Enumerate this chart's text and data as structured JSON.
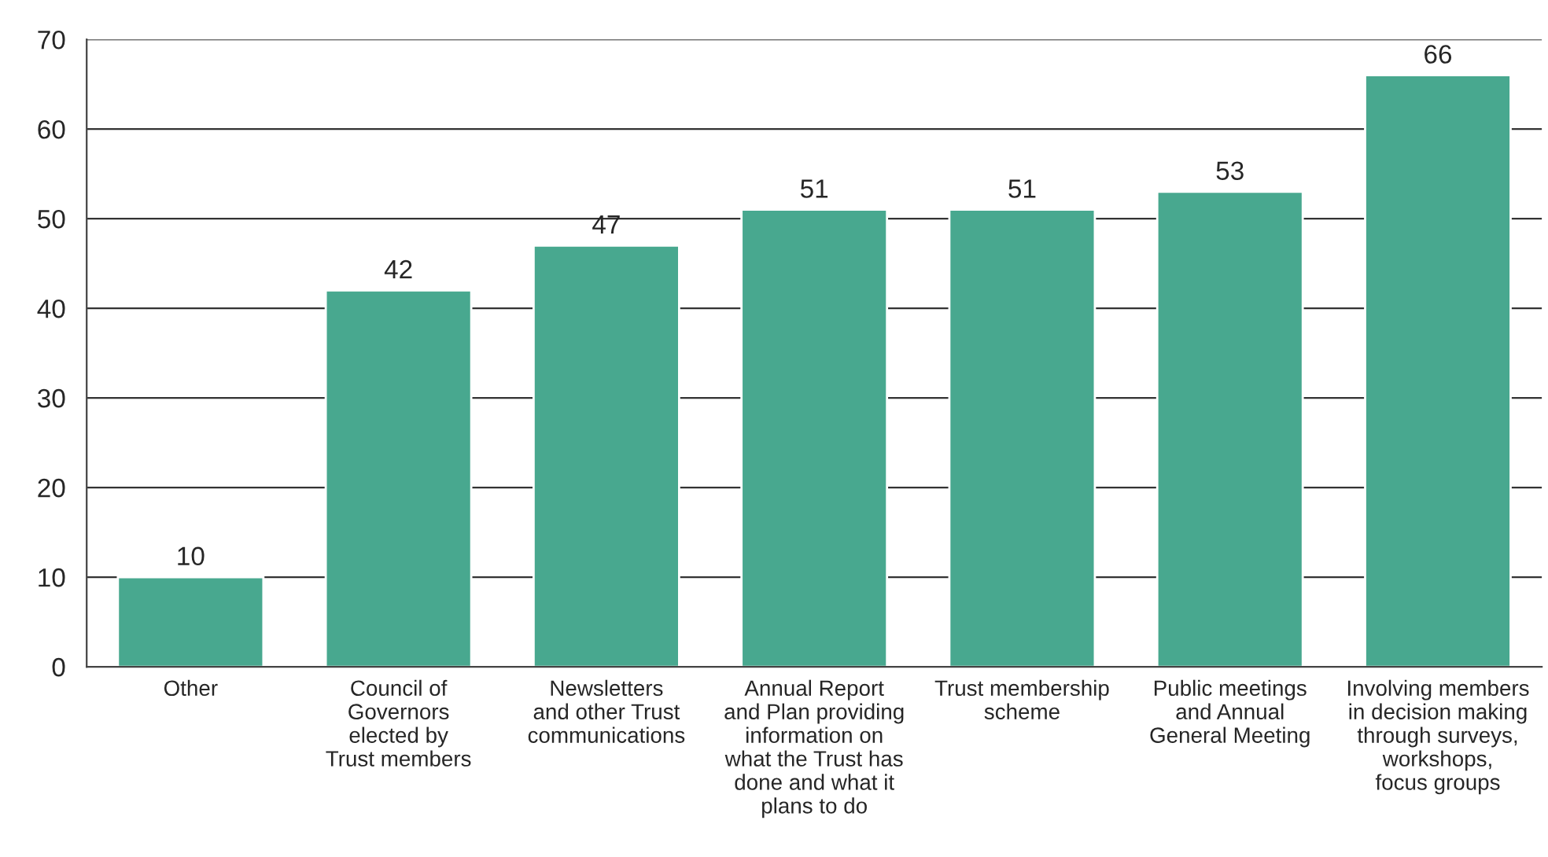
{
  "chart_data": {
    "type": "bar",
    "categories": [
      "Other",
      "Council of\nGovernors\nelected by\nTrust members",
      "Newsletters\nand other Trust\ncommunications",
      "Annual Report\nand Plan providing\ninformation on\nwhat the Trust has\ndone and what it\nplans to do",
      "Trust membership\nscheme",
      "Public meetings\nand Annual\nGeneral Meeting",
      "Involving members\nin decision making\nthrough surveys,\nworkshops,\nfocus groups"
    ],
    "values": [
      10,
      42,
      47,
      51,
      51,
      53,
      66
    ],
    "color": "#48a88f",
    "ylim": [
      0,
      70
    ],
    "yticks": [
      0,
      10,
      20,
      30,
      40,
      50,
      60,
      70
    ],
    "grid": "y",
    "data_labels": true
  }
}
